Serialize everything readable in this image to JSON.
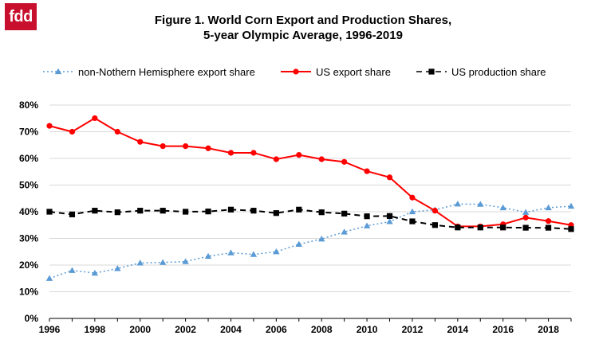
{
  "logo": {
    "text": "fdd"
  },
  "colors": {
    "brand": "#c8102e",
    "us_export": "#ff0000",
    "us_production": "#000000",
    "non_nh_export": "#5b9bd5"
  },
  "chart_data": {
    "type": "line",
    "title": "Figure 1. World Corn Export and Production Shares,",
    "subtitle": "5-year Olympic Average, 1996-2019",
    "xlabel": "",
    "ylabel": "",
    "x": [
      1996,
      1997,
      1998,
      1999,
      2000,
      2001,
      2002,
      2003,
      2004,
      2005,
      2006,
      2007,
      2008,
      2009,
      2010,
      2011,
      2012,
      2013,
      2014,
      2015,
      2016,
      2017,
      2018,
      2019
    ],
    "x_ticks": [
      "1996",
      "1998",
      "2000",
      "2002",
      "2004",
      "2006",
      "2008",
      "2010",
      "2012",
      "2014",
      "2016",
      "2018"
    ],
    "xlim": [
      1996,
      2019
    ],
    "y_ticks": [
      "0%",
      "10%",
      "20%",
      "30%",
      "40%",
      "50%",
      "60%",
      "70%",
      "80%"
    ],
    "ylim": [
      0,
      80
    ],
    "grid": "horizontal",
    "legend_position": "top",
    "series": [
      {
        "name": "non-Nothern Hemisphere export share",
        "style": "dotted",
        "marker": "triangle",
        "color": "#5b9bd5",
        "values": [
          15,
          18,
          17,
          18.7,
          20.8,
          21,
          21.3,
          23.3,
          24.6,
          24,
          25,
          27.8,
          29.8,
          32.4,
          34.7,
          36.3,
          40,
          40.7,
          42.9,
          42.8,
          41.5,
          39.8,
          41.5,
          42.1
        ]
      },
      {
        "name": "US export share",
        "style": "solid",
        "marker": "circle",
        "color": "#ff0000",
        "values": [
          72.2,
          70,
          75.1,
          70,
          66.2,
          64.6,
          64.6,
          63.8,
          62.1,
          62.1,
          59.7,
          61.3,
          59.7,
          58.7,
          55.2,
          52.9,
          45.3,
          40.4,
          34.5,
          34.5,
          35.3,
          37.8,
          36.5,
          35
        ]
      },
      {
        "name": "US production share",
        "style": "dashed",
        "marker": "square",
        "color": "#000000",
        "values": [
          40,
          39,
          40.4,
          39.8,
          40.4,
          40.4,
          40,
          40.1,
          40.8,
          40.4,
          39.5,
          40.8,
          39.8,
          39.3,
          38.3,
          38.4,
          36.4,
          35,
          34.1,
          34.1,
          34.1,
          34,
          34,
          33.5
        ]
      }
    ]
  }
}
